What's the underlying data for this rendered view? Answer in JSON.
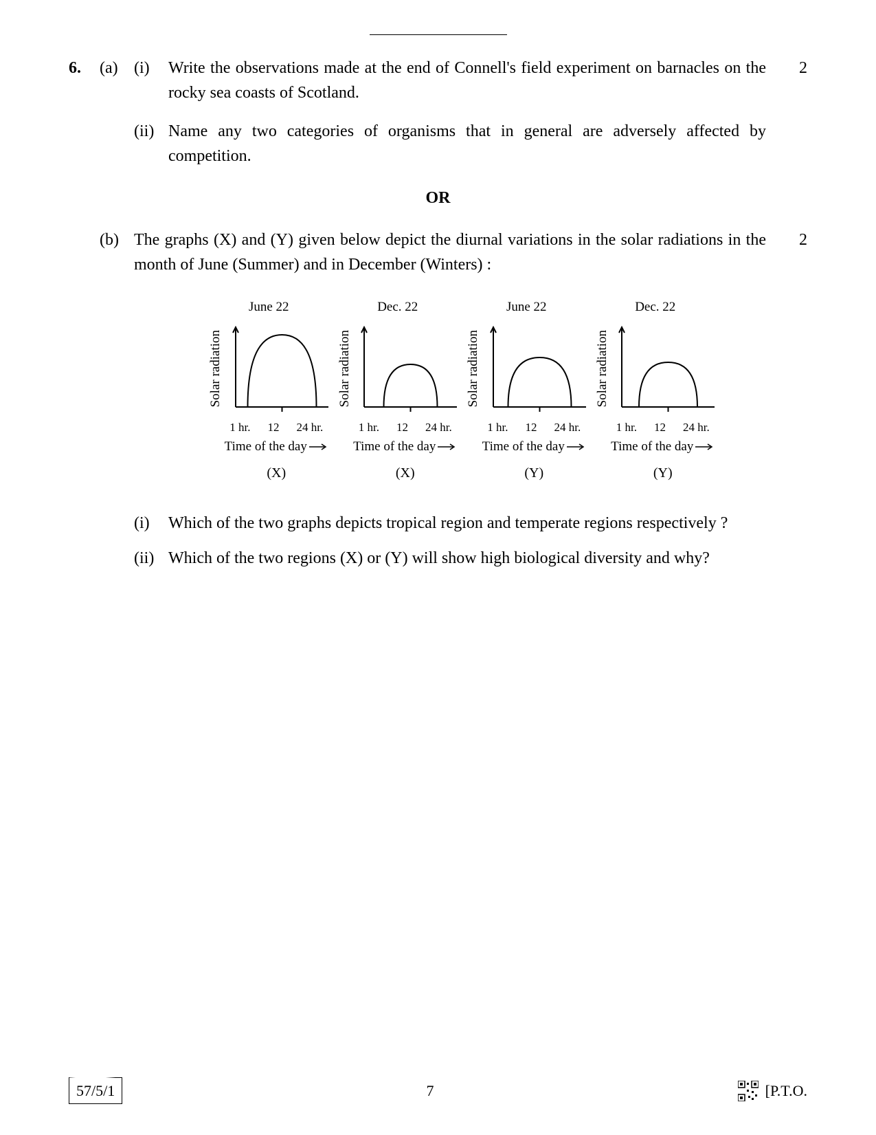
{
  "question": {
    "number": "6.",
    "part_a": {
      "label": "(a)",
      "sub_i": {
        "label": "(i)",
        "text": "Write the observations made at the end of Connell's field experiment on barnacles on the rocky sea coasts of Scotland."
      },
      "sub_ii": {
        "label": "(ii)",
        "text": "Name any two categories of organisms that in general are adversely affected by competition."
      },
      "marks": "2"
    },
    "or_label": "OR",
    "part_b": {
      "label": "(b)",
      "intro": "The graphs (X) and (Y) given below depict the diurnal variations in the solar radiations in the month of June (Summer) and in December (Winters) :",
      "marks": "2",
      "sub_i": {
        "label": "(i)",
        "text": "Which of the two graphs depicts tropical region and temperate regions respectively ?"
      },
      "sub_ii": {
        "label": "(ii)",
        "text": "Which of the two regions (X) or (Y) will show high biological diversity and why?"
      }
    }
  },
  "charts": {
    "y_label": "Solar radiation",
    "x_label": "Time of the day",
    "x_ticks": {
      "t1": "1 hr.",
      "t2": "12",
      "t3": "24 hr."
    },
    "stroke_color": "#000000",
    "stroke_width": 2,
    "graphs": [
      {
        "title": "June 22",
        "id": "(X)",
        "peak_height": 105,
        "peak_width": 100
      },
      {
        "title": "Dec. 22",
        "id": "(X)",
        "peak_height": 62,
        "peak_width": 78
      },
      {
        "title": "June 22",
        "id": "(Y)",
        "peak_height": 72,
        "peak_width": 92
      },
      {
        "title": "Dec. 22",
        "id": "(Y)",
        "peak_height": 65,
        "peak_width": 85
      }
    ]
  },
  "footer": {
    "paper_code": "57/5/1",
    "page_number": "7",
    "pto": "[P.T.O."
  }
}
